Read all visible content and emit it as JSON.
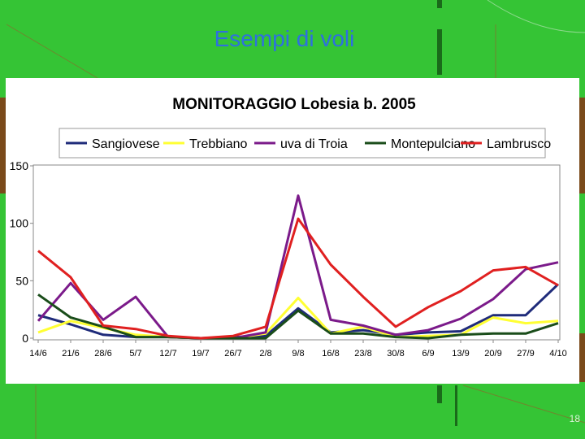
{
  "slide": {
    "title": "Esempi di voli",
    "page_number": "18"
  },
  "chart_data": {
    "type": "line",
    "title": "MONITORAGGIO Lobesia b. 2005",
    "xlabel": "",
    "ylabel": "",
    "ylim": [
      0,
      150
    ],
    "yticks": [
      0,
      50,
      100,
      150
    ],
    "grid": false,
    "legend_position": "top",
    "categories": [
      "14/6",
      "21/6",
      "28/6",
      "5/7",
      "12/7",
      "19/7",
      "26/7",
      "2/8",
      "9/8",
      "16/8",
      "23/8",
      "30/8",
      "6/9",
      "13/9",
      "20/9",
      "27/9",
      "4/10"
    ],
    "series": [
      {
        "name": "Sangiovese",
        "color": "#1f2b7a",
        "values": [
          20,
          12,
          3,
          1,
          1,
          0,
          1,
          2,
          26,
          5,
          7,
          3,
          5,
          6,
          20,
          20,
          47
        ]
      },
      {
        "name": "Trebbiano",
        "color": "#ffff33",
        "values": [
          5,
          15,
          9,
          3,
          1,
          0,
          0,
          4,
          35,
          4,
          10,
          1,
          2,
          3,
          18,
          13,
          15
        ]
      },
      {
        "name": "uva di Troia",
        "color": "#7b1a8a",
        "values": [
          15,
          48,
          16,
          36,
          1,
          0,
          0,
          5,
          124,
          16,
          11,
          3,
          7,
          17,
          34,
          60,
          66
        ]
      },
      {
        "name": "Montepulciano",
        "color": "#1a4d1a",
        "values": [
          38,
          18,
          10,
          1,
          1,
          0,
          0,
          0,
          24,
          4,
          4,
          1,
          0,
          3,
          4,
          4,
          13
        ]
      },
      {
        "name": "Lambrusco",
        "color": "#e02020",
        "values": [
          76,
          53,
          11,
          8,
          2,
          0,
          2,
          10,
          104,
          64,
          36,
          10,
          27,
          41,
          59,
          62,
          46
        ]
      }
    ]
  },
  "colors": {
    "slide_bg": "#35c435",
    "title": "#2e6fe0"
  }
}
